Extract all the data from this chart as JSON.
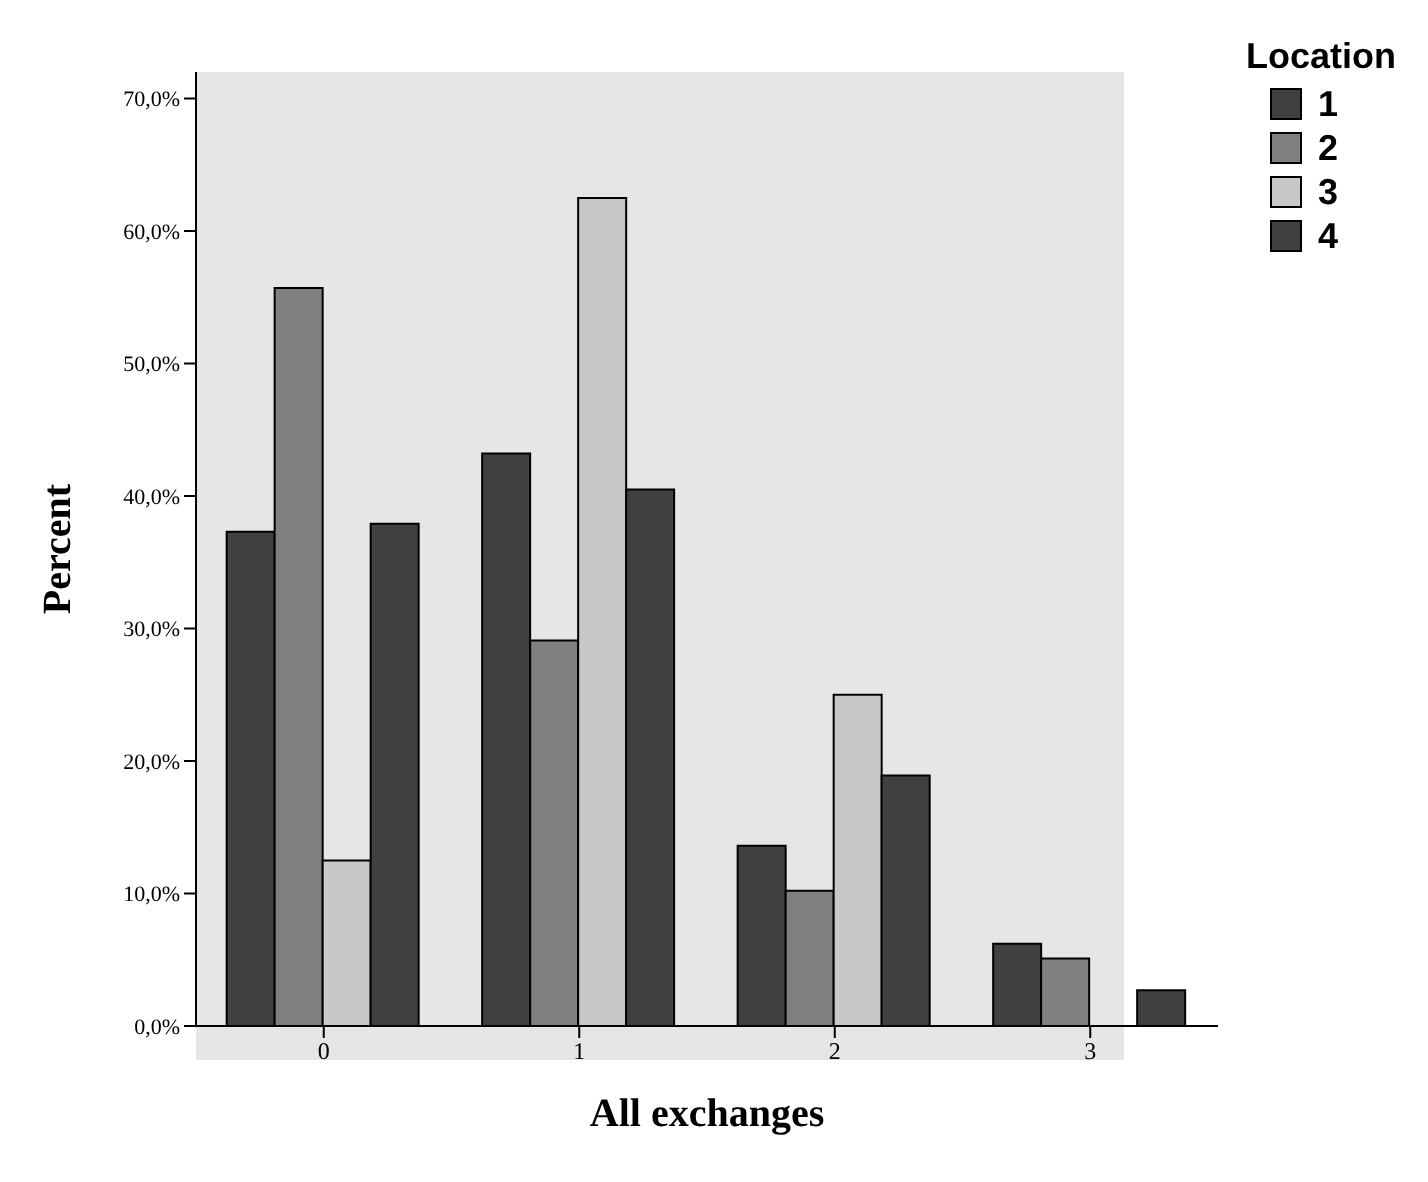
{
  "chart_data": {
    "type": "bar",
    "xlabel": "All exchanges",
    "ylabel": "Percent",
    "legend_title": "Location",
    "categories": [
      "0",
      "1",
      "2",
      "3"
    ],
    "series": [
      {
        "name": "1",
        "color": "#404040",
        "values": [
          37.3,
          43.2,
          13.6,
          6.2
        ]
      },
      {
        "name": "2",
        "color": "#808080",
        "values": [
          55.7,
          29.1,
          10.2,
          5.1
        ]
      },
      {
        "name": "3",
        "color": "#c8c8c8",
        "values": [
          12.5,
          62.5,
          25.0,
          0
        ]
      },
      {
        "name": "4",
        "color": "#404040",
        "values": [
          37.9,
          40.5,
          18.9,
          2.7
        ]
      }
    ],
    "ylim": [
      0,
      72
    ],
    "yticks": [
      {
        "value": 0,
        "label": "0,0%"
      },
      {
        "value": 10,
        "label": "10,0%"
      },
      {
        "value": 20,
        "label": "20,0%"
      },
      {
        "value": 30,
        "label": "30,0%"
      },
      {
        "value": 40,
        "label": "40,0%"
      },
      {
        "value": 50,
        "label": "50,0%"
      },
      {
        "value": 60,
        "label": "60,0%"
      },
      {
        "value": 70,
        "label": "70,0%"
      }
    ],
    "grid": false,
    "legend": "top right"
  }
}
